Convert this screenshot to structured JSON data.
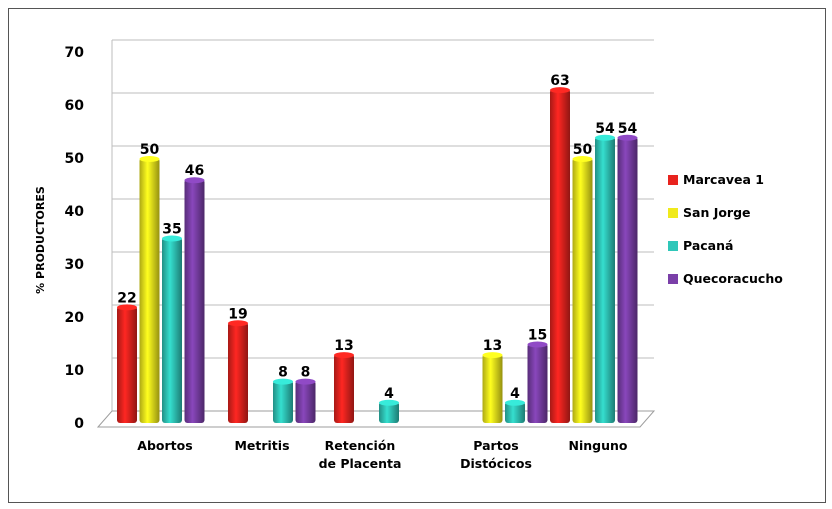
{
  "chart_data": {
    "type": "bar",
    "ylabel": "% PRODUCTORES",
    "ylim": [
      0,
      70
    ],
    "yticks": [
      "0",
      "10",
      "20",
      "30",
      "40",
      "50",
      "60",
      "70"
    ],
    "categories": [
      [
        "Abortos"
      ],
      [
        "Metritis"
      ],
      [
        "Retención",
        "de Placenta"
      ],
      [
        "Partos",
        "Distócicos"
      ],
      [
        "Ninguno"
      ]
    ],
    "series": [
      {
        "name": "Marcavea 1",
        "color": "#e8231e",
        "values": [
          22,
          19,
          13,
          null,
          63
        ]
      },
      {
        "name": "San Jorge",
        "color": "#f0ea1c",
        "values": [
          50,
          null,
          null,
          13,
          50
        ]
      },
      {
        "name": "Pacaná",
        "color": "#2fc7b9",
        "values": [
          35,
          8,
          4,
          4,
          54
        ]
      },
      {
        "name": "Quecoracucho",
        "color": "#7a3fa8",
        "values": [
          46,
          8,
          null,
          15,
          54
        ]
      }
    ],
    "legend_position": "right",
    "grid": true
  }
}
